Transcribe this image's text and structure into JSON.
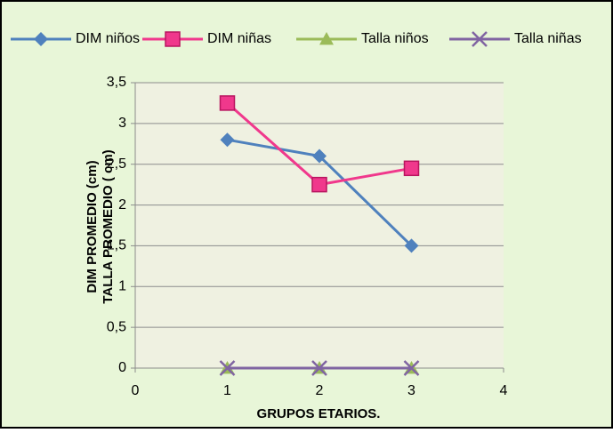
{
  "chart_data": {
    "type": "line",
    "x": [
      1,
      2,
      3
    ],
    "series": [
      {
        "name": "DIM niños",
        "color": "#4f81bd",
        "marker": "diamond",
        "values": [
          2.8,
          2.6,
          1.5
        ]
      },
      {
        "name": "DIM niñas",
        "color": "#f0388c",
        "marker": "square",
        "values": [
          3.25,
          2.25,
          2.45
        ]
      },
      {
        "name": "Talla niños",
        "color": "#9bbb59",
        "marker": "triangle",
        "values": [
          0,
          0,
          0
        ]
      },
      {
        "name": "Talla niñas",
        "color": "#8064a2",
        "marker": "x",
        "values": [
          0,
          0,
          0
        ]
      }
    ],
    "xlabel": "GRUPOS ETARIOS.",
    "ylabel": [
      "DIM PROMEDIO (cm)",
      "TALLA PROMEDIO ( cm)"
    ],
    "xlim": [
      0,
      4
    ],
    "xticks": [
      0,
      1,
      2,
      3,
      4
    ],
    "ylim": [
      0,
      3.5
    ],
    "yticks": [
      0,
      {
        "value": 0.5,
        "label": "0,5"
      },
      1,
      {
        "value": 1.5,
        "label": "1,5"
      },
      2,
      {
        "value": 2.5,
        "label": "2,5"
      },
      3,
      {
        "value": 3.5,
        "label": "3,5"
      }
    ],
    "grid": true,
    "legend": "top"
  }
}
